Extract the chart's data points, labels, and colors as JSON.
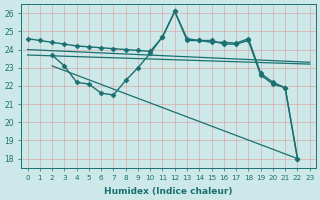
{
  "xlabel": "Humidex (Indice chaleur)",
  "background_color": "#cce8e8",
  "grid_color": "#aacccc",
  "line_color": "#1a7070",
  "xlim": [
    -0.5,
    23.5
  ],
  "ylim": [
    17.5,
    26.5
  ],
  "yticks": [
    18,
    19,
    20,
    21,
    22,
    23,
    24,
    25,
    26
  ],
  "xticks": [
    0,
    1,
    2,
    3,
    4,
    5,
    6,
    7,
    8,
    9,
    10,
    11,
    12,
    13,
    14,
    15,
    16,
    17,
    18,
    19,
    20,
    21,
    22,
    23
  ],
  "series": [
    {
      "x": [
        0,
        1,
        2,
        3,
        4,
        5,
        6,
        7,
        8,
        9,
        10,
        11,
        12,
        13,
        14,
        15,
        16,
        17,
        18,
        19,
        20,
        21,
        22
      ],
      "y": [
        24.6,
        24.5,
        24.4,
        24.3,
        24.2,
        24.15,
        24.1,
        24.05,
        24.0,
        23.95,
        23.9,
        24.7,
        26.1,
        24.6,
        24.5,
        24.4,
        24.4,
        24.35,
        24.6,
        22.7,
        22.2,
        21.9,
        18.0
      ],
      "marker": "D",
      "markersize": 2.5,
      "linewidth": 1.0
    },
    {
      "x": [
        0,
        23
      ],
      "y": [
        24.0,
        23.3
      ],
      "marker": null,
      "markersize": 0,
      "linewidth": 0.9
    },
    {
      "x": [
        0,
        23
      ],
      "y": [
        23.7,
        23.2
      ],
      "marker": null,
      "markersize": 0,
      "linewidth": 0.9
    },
    {
      "x": [
        2,
        3,
        4,
        5,
        6,
        7,
        8,
        9,
        10,
        11,
        12,
        13,
        14,
        15,
        16,
        17,
        18,
        19,
        20,
        21,
        22
      ],
      "y": [
        23.7,
        23.1,
        22.2,
        22.1,
        21.6,
        21.5,
        22.3,
        23.0,
        23.8,
        24.7,
        26.1,
        24.5,
        24.5,
        24.5,
        24.3,
        24.3,
        24.5,
        22.6,
        22.1,
        21.9,
        18.0
      ],
      "marker": "D",
      "markersize": 2.5,
      "linewidth": 1.0
    },
    {
      "x": [
        2,
        22
      ],
      "y": [
        23.1,
        18.0
      ],
      "marker": null,
      "markersize": 0,
      "linewidth": 0.9
    }
  ]
}
